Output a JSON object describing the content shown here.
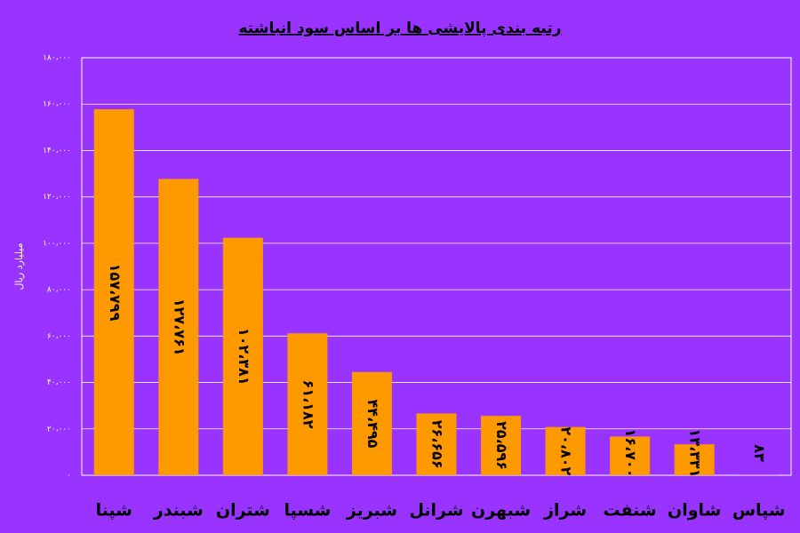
{
  "chart_data": {
    "type": "bar",
    "title": "رتبه بندی پالایشی ها بر اساس سود انباشته",
    "y_label": "میلیارد ریال",
    "categories": [
      "شپنا",
      "شبندر",
      "شتران",
      "شسپا",
      "شبریز",
      "شرانل",
      "شبهرن",
      "شراز",
      "شنفت",
      "شاوان",
      "شپاس"
    ],
    "values": [
      157799,
      127761,
      102381,
      61182,
      44495,
      26656,
      25596,
      20802,
      16700,
      13331,
      83
    ],
    "value_labels": [
      "۱۵۷،۷۹۹",
      "۱۲۷،۷۶۱",
      "۱۰۲،۳۸۱",
      "۶۱،۱۸۲",
      "۴۴،۴۹۵",
      "۲۶،۶۵۶",
      "۲۵،۵۹۶",
      "۲۰،۸۰۲",
      "۱۶،۷۰۰",
      "۱۳،۳۳۱",
      "۸۳"
    ],
    "color": "#ff9900",
    "ylim": [
      0,
      180000
    ],
    "yticks": [
      {
        "value": 0,
        "label": "۰"
      },
      {
        "value": 20000,
        "label": "۲۰،۰۰۰"
      },
      {
        "value": 40000,
        "label": "۴۰،۰۰۰"
      },
      {
        "value": 60000,
        "label": "۶۰،۰۰۰"
      },
      {
        "value": 80000,
        "label": "۸۰،۰۰۰"
      },
      {
        "value": 100000,
        "label": "۱۰۰،۰۰۰"
      },
      {
        "value": 120000,
        "label": "۱۲۰،۰۰۰"
      },
      {
        "value": 140000,
        "label": "۱۴۰،۰۰۰"
      },
      {
        "value": 160000,
        "label": "۱۶۰،۰۰۰"
      },
      {
        "value": 180000,
        "label": "۱۸۰،۰۰۰"
      }
    ],
    "grid": true
  }
}
